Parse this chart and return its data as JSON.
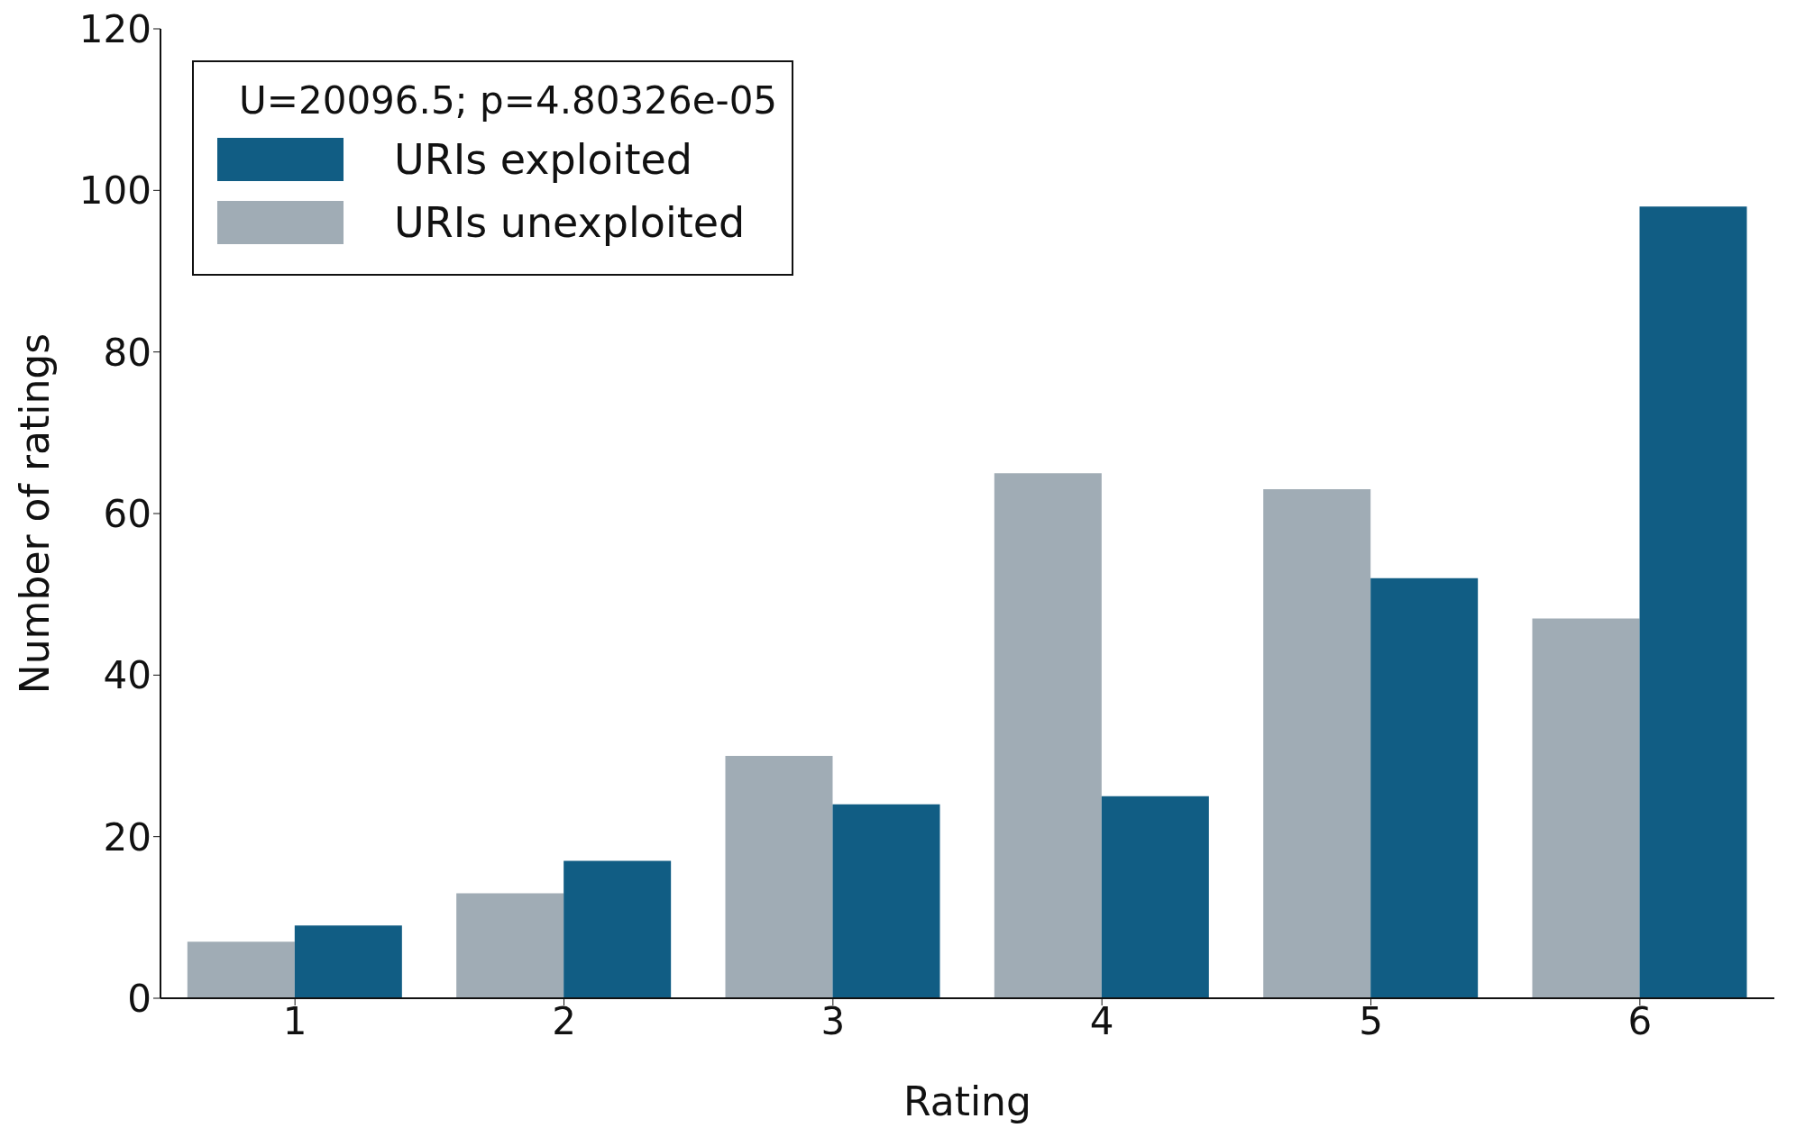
{
  "chart_data": {
    "type": "bar",
    "xlabel": "Rating",
    "ylabel": "Number of ratings",
    "legend_title": "U=20096.5; p=4.80326e-05",
    "categories": [
      "1",
      "2",
      "3",
      "4",
      "5",
      "6"
    ],
    "series": [
      {
        "name": "URIs unexploited",
        "color": "#a0acb5",
        "values": [
          7,
          13,
          30,
          65,
          63,
          47
        ]
      },
      {
        "name": "URIs exploited",
        "color": "#115d84",
        "values": [
          9,
          17,
          24,
          25,
          52,
          98
        ]
      }
    ],
    "ylim": [
      0,
      120
    ],
    "yticks": [
      0,
      20,
      40,
      60,
      80,
      100,
      120
    ],
    "grid": false,
    "legend": "top left"
  }
}
